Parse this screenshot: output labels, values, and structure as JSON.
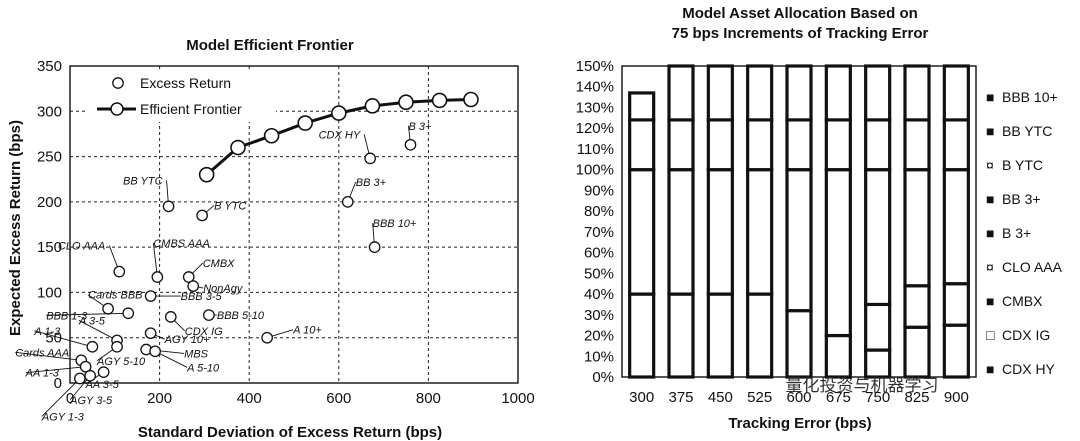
{
  "chart_data": [
    {
      "type": "scatter",
      "title": "Model Efficient Frontier",
      "xlabel": "Standard Deviation of Excess Return (bps)",
      "ylabel": "Expected Excess Return (bps)",
      "xlim": [
        0,
        1000
      ],
      "ylim": [
        0,
        350
      ],
      "xticks": [
        "0",
        "200",
        "400",
        "600",
        "800",
        "1000"
      ],
      "yticks": [
        "0",
        "50",
        "100",
        "150",
        "200",
        "250",
        "300",
        "350"
      ],
      "grid": true,
      "legend": [
        "Excess Return",
        "Efficient Frontier"
      ],
      "legend_position": "top-left",
      "series": [
        {
          "name": "Excess Return",
          "points": [
            {
              "label": "CDX HY",
              "x": 670,
              "y": 248
            },
            {
              "label": "B 3+",
              "x": 760,
              "y": 263
            },
            {
              "label": "BB YTC",
              "x": 220,
              "y": 195
            },
            {
              "label": "B YTC",
              "x": 295,
              "y": 185
            },
            {
              "label": "BB 3+",
              "x": 620,
              "y": 200
            },
            {
              "label": "BBB 10+",
              "x": 680,
              "y": 150
            },
            {
              "label": "CLO AAA",
              "x": 110,
              "y": 123
            },
            {
              "label": "CMBS AAA",
              "x": 195,
              "y": 117
            },
            {
              "label": "CMBX",
              "x": 265,
              "y": 117
            },
            {
              "label": "NonAgy",
              "x": 275,
              "y": 107
            },
            {
              "label": "Cards BBB",
              "x": 85,
              "y": 82
            },
            {
              "label": "BBB 3-5",
              "x": 180,
              "y": 96
            },
            {
              "label": "BBB 1-3",
              "x": 130,
              "y": 77
            },
            {
              "label": "BBB 5-10",
              "x": 310,
              "y": 75
            },
            {
              "label": "CDX IG",
              "x": 225,
              "y": 73
            },
            {
              "label": "A 1-3",
              "x": 50,
              "y": 40
            },
            {
              "label": "A 3-5",
              "x": 105,
              "y": 47
            },
            {
              "label": "AGY 10+",
              "x": 180,
              "y": 55
            },
            {
              "label": "A 10+",
              "x": 440,
              "y": 50
            },
            {
              "label": "Cards AAA",
              "x": 25,
              "y": 25
            },
            {
              "label": "AA 1-3",
              "x": 35,
              "y": 18
            },
            {
              "label": "MBS",
              "x": 170,
              "y": 37
            },
            {
              "label": "AGY 5-10",
              "x": 105,
              "y": 40
            },
            {
              "label": "A 5-10",
              "x": 190,
              "y": 35
            },
            {
              "label": "AA 3-5",
              "x": 75,
              "y": 12
            },
            {
              "label": "AGY 3-5",
              "x": 45,
              "y": 8
            },
            {
              "label": "AGY 1-3",
              "x": 22,
              "y": 5
            }
          ]
        },
        {
          "name": "Efficient Frontier",
          "x": [
            305,
            375,
            450,
            525,
            600,
            675,
            750,
            825,
            895
          ],
          "y": [
            230,
            260,
            273,
            287,
            298,
            306,
            310,
            312,
            313
          ]
        }
      ]
    },
    {
      "type": "bar",
      "stacked": true,
      "title": "Model Asset Allocation Based on 75 bps Increments of Tracking Error",
      "xlabel": "Tracking Error (bps)",
      "ylabel": "",
      "ylim": [
        0,
        150
      ],
      "yticks": [
        "0%",
        "10%",
        "20%",
        "30%",
        "40%",
        "50%",
        "60%",
        "70%",
        "80%",
        "90%",
        "100%",
        "110%",
        "120%",
        "130%",
        "140%",
        "150%"
      ],
      "categories": [
        "300",
        "375",
        "450",
        "525",
        "600",
        "675",
        "750",
        "825",
        "900"
      ],
      "legend_position": "right",
      "series": [
        {
          "name": "CDX HY",
          "values": [
            0,
            0,
            0,
            0,
            0,
            0,
            13,
            24,
            25
          ]
        },
        {
          "name": "CDX IG",
          "values": [
            0,
            0,
            0,
            0,
            0,
            20,
            0,
            0,
            0
          ]
        },
        {
          "name": "CMBX",
          "values": [
            40,
            40,
            40,
            40,
            32,
            0,
            22,
            20,
            20
          ]
        },
        {
          "name": "CLO AAA",
          "values": [
            60,
            60,
            60,
            60,
            68,
            80,
            65,
            56,
            55
          ]
        },
        {
          "name": "B 3+",
          "values": [
            0,
            0,
            0,
            0,
            0,
            0,
            0,
            0,
            0
          ]
        },
        {
          "name": "BB 3+",
          "values": [
            0,
            0,
            0,
            0,
            0,
            0,
            0,
            0,
            0
          ]
        },
        {
          "name": "B YTC",
          "values": [
            0,
            0,
            0,
            0,
            0,
            0,
            0,
            0,
            0
          ]
        },
        {
          "name": "BB YTC",
          "values": [
            24,
            24,
            24,
            24,
            24,
            24,
            24,
            24,
            24
          ]
        },
        {
          "name": "BBB 10+",
          "values": [
            13,
            26,
            26,
            26,
            26,
            26,
            26,
            26,
            26
          ]
        }
      ]
    }
  ],
  "watermark": "量化投资与机器学习",
  "colors": {
    "ink": "#111111",
    "paper": "#ffffff"
  }
}
